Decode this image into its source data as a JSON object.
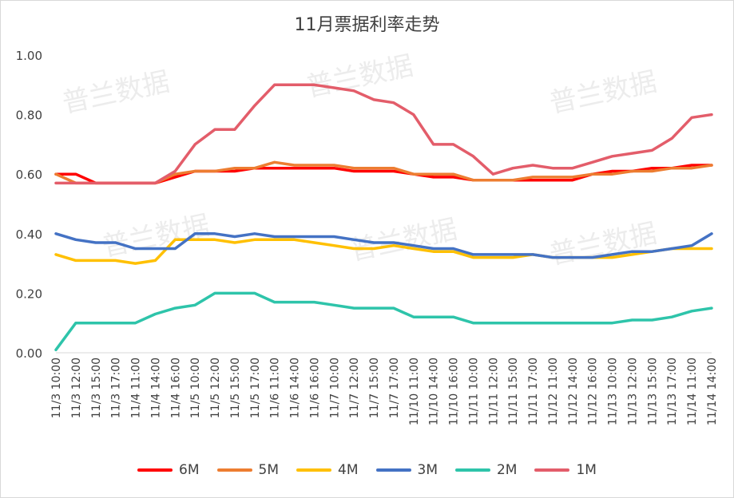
{
  "chart_data": {
    "type": "line",
    "title": "11月票据利率走势",
    "xlabel": "",
    "ylabel": "",
    "ylim": [
      0,
      1
    ],
    "yticks": [
      "0.00",
      "0.20",
      "0.40",
      "0.60",
      "0.80",
      "1.00"
    ],
    "ytick_values": [
      0,
      0.2,
      0.4,
      0.6,
      0.8,
      1.0
    ],
    "grid": false,
    "legend": "bottom",
    "watermark": "普兰数据",
    "x_labels": [
      "11/3 10:00",
      "11/3 12:00",
      "11/3 15:00",
      "11/3 17:00",
      "11/4 11:00",
      "11/4 14:00",
      "11/4 16:00",
      "11/5 10:00",
      "11/5 12:00",
      "11/5 15:00",
      "11/5 17:00",
      "11/6 11:00",
      "11/6 14:00",
      "11/6 16:00",
      "11/7 10:00",
      "11/7 12:00",
      "11/7 15:00",
      "11/7 17:00",
      "11/10 11:00",
      "11/10 14:00",
      "11/10 16:00",
      "11/11 10:00",
      "11/11 12:00",
      "11/11 15:00",
      "11/11 17:00",
      "11/12 11:00",
      "11/12 14:00",
      "11/12 16:00",
      "11/13 10:00",
      "11/13 12:00",
      "11/13 15:00",
      "11/13 17:00",
      "11/14 11:00",
      "11/14 14:00"
    ],
    "series": [
      {
        "name": "6M",
        "color": "#ff0000",
        "values": [
          0.6,
          0.6,
          0.57,
          0.57,
          0.57,
          0.57,
          0.59,
          0.61,
          0.61,
          0.61,
          0.62,
          0.62,
          0.62,
          0.62,
          0.62,
          0.61,
          0.61,
          0.61,
          0.6,
          0.59,
          0.59,
          0.58,
          0.58,
          0.58,
          0.58,
          0.58,
          0.58,
          0.6,
          0.61,
          0.61,
          0.62,
          0.62,
          0.63,
          0.63
        ]
      },
      {
        "name": "5M",
        "color": "#ed7d31",
        "values": [
          0.6,
          0.57,
          0.57,
          0.57,
          0.57,
          0.57,
          0.6,
          0.61,
          0.61,
          0.62,
          0.62,
          0.64,
          0.63,
          0.63,
          0.63,
          0.62,
          0.62,
          0.62,
          0.6,
          0.6,
          0.6,
          0.58,
          0.58,
          0.58,
          0.59,
          0.59,
          0.59,
          0.6,
          0.6,
          0.61,
          0.61,
          0.62,
          0.62,
          0.63
        ]
      },
      {
        "name": "4M",
        "color": "#ffc000",
        "values": [
          0.33,
          0.31,
          0.31,
          0.31,
          0.3,
          0.31,
          0.38,
          0.38,
          0.38,
          0.37,
          0.38,
          0.38,
          0.38,
          0.37,
          0.36,
          0.35,
          0.35,
          0.36,
          0.35,
          0.34,
          0.34,
          0.32,
          0.32,
          0.32,
          0.33,
          0.32,
          0.32,
          0.32,
          0.32,
          0.33,
          0.34,
          0.35,
          0.35,
          0.35
        ]
      },
      {
        "name": "3M",
        "color": "#4472c4",
        "values": [
          0.4,
          0.38,
          0.37,
          0.37,
          0.35,
          0.35,
          0.35,
          0.4,
          0.4,
          0.39,
          0.4,
          0.39,
          0.39,
          0.39,
          0.39,
          0.38,
          0.37,
          0.37,
          0.36,
          0.35,
          0.35,
          0.33,
          0.33,
          0.33,
          0.33,
          0.32,
          0.32,
          0.32,
          0.33,
          0.34,
          0.34,
          0.35,
          0.36,
          0.4
        ]
      },
      {
        "name": "2M",
        "color": "#2ec4aa",
        "values": [
          0.01,
          0.1,
          0.1,
          0.1,
          0.1,
          0.13,
          0.15,
          0.16,
          0.2,
          0.2,
          0.2,
          0.17,
          0.17,
          0.17,
          0.16,
          0.15,
          0.15,
          0.15,
          0.12,
          0.12,
          0.12,
          0.1,
          0.1,
          0.1,
          0.1,
          0.1,
          0.1,
          0.1,
          0.1,
          0.11,
          0.11,
          0.12,
          0.14,
          0.15
        ]
      },
      {
        "name": "1M",
        "color": "#e35d6a",
        "values": [
          0.57,
          0.57,
          0.57,
          0.57,
          0.57,
          0.57,
          0.61,
          0.7,
          0.75,
          0.75,
          0.83,
          0.9,
          0.9,
          0.9,
          0.89,
          0.88,
          0.85,
          0.84,
          0.8,
          0.7,
          0.7,
          0.66,
          0.6,
          0.62,
          0.63,
          0.62,
          0.62,
          0.64,
          0.66,
          0.67,
          0.68,
          0.72,
          0.79,
          0.8
        ]
      }
    ]
  }
}
